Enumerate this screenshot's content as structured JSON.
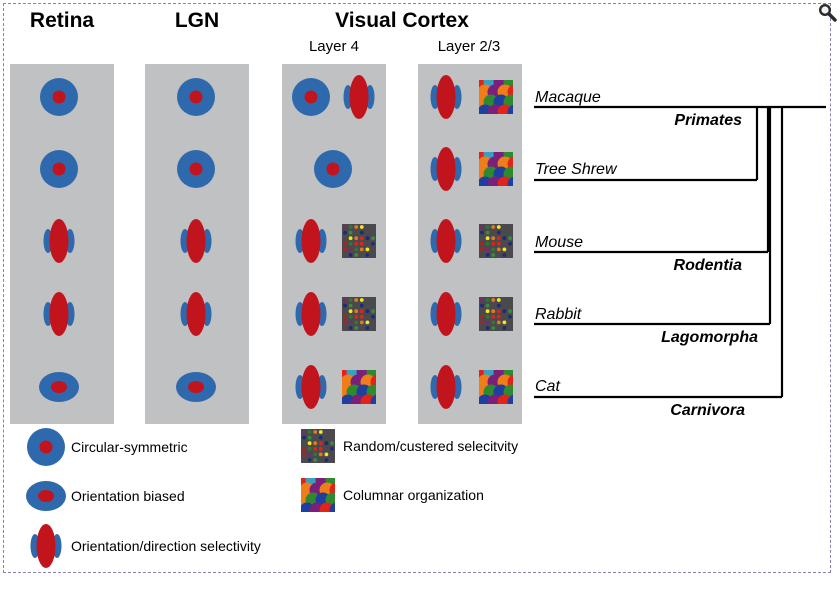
{
  "columns": {
    "retina": "Retina",
    "lgn": "LGN",
    "visual_cortex": "Visual Cortex",
    "layer4": "Layer 4",
    "layer23": "Layer 2/3"
  },
  "species": [
    "Macaque",
    "Tree Shrew",
    "Mouse",
    "Rabbit",
    "Cat"
  ],
  "orders": [
    "Primates",
    "Rodentia",
    "Lagomorpha",
    "Carnivora"
  ],
  "rows": [
    {
      "retina": "circular",
      "lgn": "circular",
      "layer4": [
        "circular",
        "orientation-direction"
      ],
      "layer23": [
        "orientation-direction",
        "columnar"
      ]
    },
    {
      "retina": "circular",
      "lgn": "circular",
      "layer4": [
        "circular"
      ],
      "layer23": [
        "orientation-direction",
        "columnar"
      ]
    },
    {
      "retina": "orientation-direction",
      "lgn": "orientation-direction",
      "layer4": [
        "orientation-direction",
        "random"
      ],
      "layer23": [
        "orientation-direction",
        "random"
      ]
    },
    {
      "retina": "orientation-direction",
      "lgn": "orientation-direction",
      "layer4": [
        "orientation-direction",
        "random"
      ],
      "layer23": [
        "orientation-direction",
        "random"
      ]
    },
    {
      "retina": "orientation-biased",
      "lgn": "orientation-biased",
      "layer4": [
        "orientation-direction",
        "columnar"
      ],
      "layer23": [
        "orientation-direction",
        "columnar"
      ]
    }
  ],
  "legend": {
    "circular": "Circular-symmetric",
    "biased": "Orientation biased",
    "direction": "Orientation/direction selectivity",
    "random": "Random/custered selecitvity",
    "columnar": "Columnar organization"
  },
  "colors": {
    "panel": "#c0c1c3",
    "blue": "#2f69ad",
    "red": "#c2141c"
  },
  "icons": {
    "zoom": "magnifier-icon"
  }
}
